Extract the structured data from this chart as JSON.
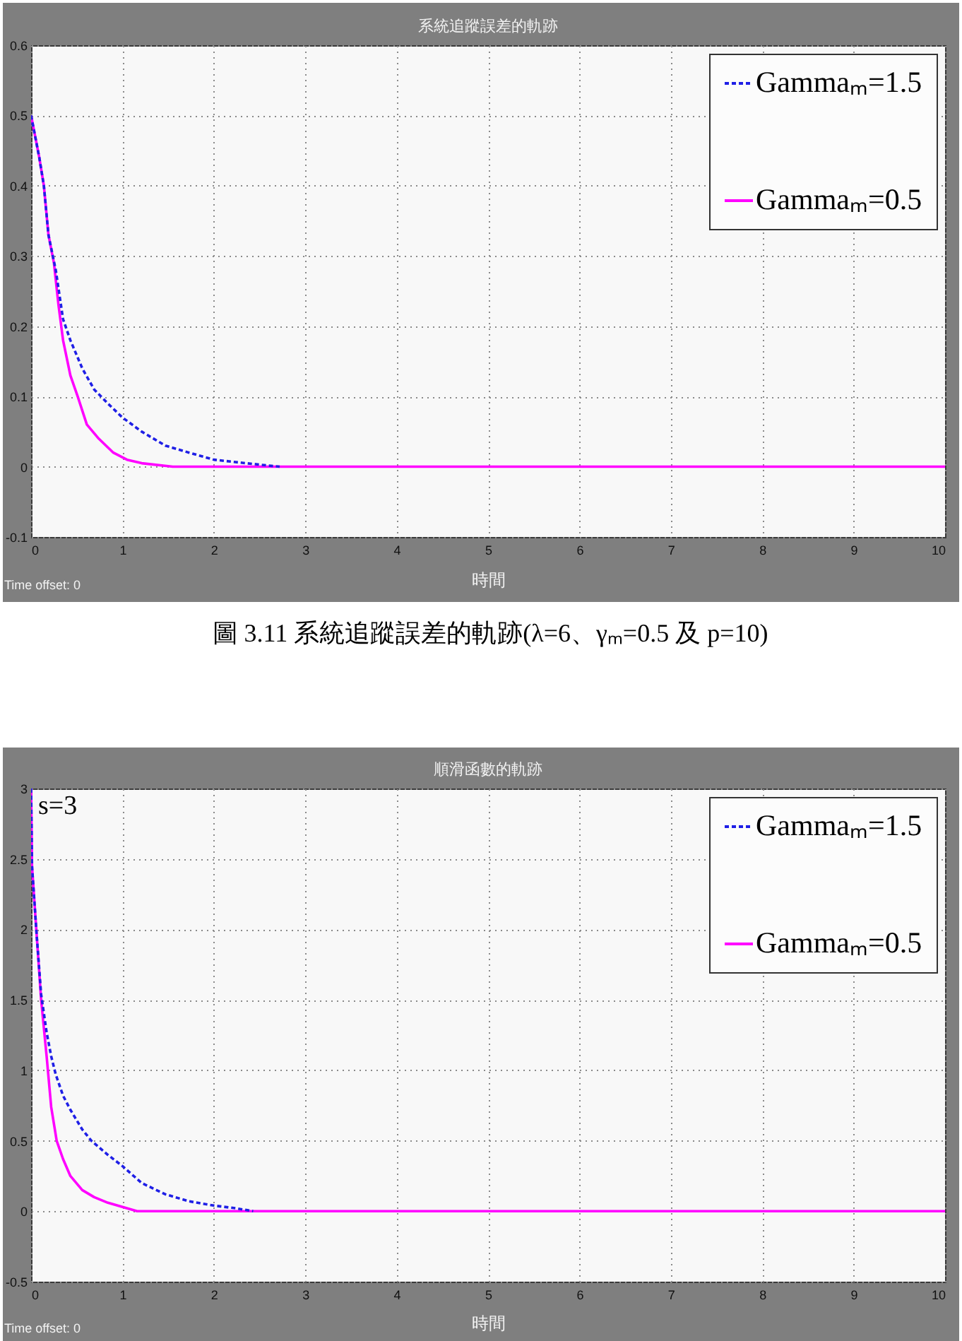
{
  "chart_data": [
    {
      "type": "line",
      "title": "系統追蹤誤差的軌跡",
      "xlabel": "時間",
      "series": [
        {
          "name": "Gammaₘ=1.5",
          "color": "#1f1fe6",
          "line_style": "dashed",
          "x": [
            0,
            0.09,
            0.14,
            0.19,
            0.27,
            0.35,
            0.43,
            0.56,
            0.69,
            0.84,
            1,
            1.21,
            1.47,
            1.73,
            2,
            2.35,
            2.72
          ],
          "values": [
            0.5,
            0.44,
            0.4,
            0.33,
            0.28,
            0.21,
            0.18,
            0.14,
            0.11,
            0.09,
            0.07,
            0.05,
            0.03,
            0.02,
            0.01,
            0.005,
            0
          ]
        },
        {
          "name": "Gammaₘ=0.5",
          "color": "#ff00ff",
          "line_style": "solid",
          "x": [
            0,
            0.09,
            0.14,
            0.19,
            0.25,
            0.3,
            0.35,
            0.43,
            0.51,
            0.61,
            0.74,
            0.9,
            1.05,
            1.21,
            1.55,
            10
          ],
          "values": [
            0.5,
            0.44,
            0.4,
            0.33,
            0.29,
            0.23,
            0.18,
            0.13,
            0.1,
            0.06,
            0.04,
            0.02,
            0.01,
            0.005,
            0,
            0
          ]
        }
      ],
      "xlim": [
        0,
        10
      ],
      "xticks": [
        0,
        1,
        2,
        3,
        4,
        5,
        6,
        7,
        8,
        9,
        10
      ],
      "ylim": [
        -0.1,
        0.6
      ],
      "yticks": [
        -0.1,
        0,
        0.1,
        0.2,
        0.3,
        0.4,
        0.5,
        0.6
      ],
      "grid": true,
      "legend": "top right",
      "annotations": [
        "Time offset: 0",
        "圖 3.11 系統追蹤誤差的軌跡(λ=6、γₘ=0.5 及 p=10)"
      ]
    },
    {
      "type": "line",
      "title": "順滑函數的軌跡",
      "xlabel": "時間",
      "series": [
        {
          "name": "Gammaₘ=1.5",
          "color": "#1f1fe6",
          "line_style": "dashed",
          "x": [
            0,
            0.01,
            0.06,
            0.11,
            0.17,
            0.22,
            0.27,
            0.35,
            0.43,
            0.56,
            0.66,
            0.84,
            1,
            1.21,
            1.47,
            1.73,
            2,
            2.25,
            2.43
          ],
          "values": [
            3,
            2.45,
            1.97,
            1.54,
            1.27,
            1.1,
            0.97,
            0.82,
            0.72,
            0.58,
            0.5,
            0.4,
            0.32,
            0.2,
            0.12,
            0.07,
            0.04,
            0.02,
            0
          ]
        },
        {
          "name": "Gammaₘ=0.5",
          "color": "#ff00ff",
          "line_style": "solid",
          "x": [
            0,
            0.01,
            0.06,
            0.11,
            0.17,
            0.22,
            0.28,
            0.35,
            0.43,
            0.56,
            0.69,
            0.84,
            1,
            1.16,
            10
          ],
          "values": [
            3,
            2.45,
            1.97,
            1.5,
            1.1,
            0.74,
            0.5,
            0.37,
            0.25,
            0.15,
            0.1,
            0.06,
            0.03,
            0,
            0
          ]
        }
      ],
      "xlim": [
        0,
        10
      ],
      "xticks": [
        0,
        1,
        2,
        3,
        4,
        5,
        6,
        7,
        8,
        9,
        10
      ],
      "ylim": [
        -0.5,
        3
      ],
      "yticks": [
        -0.5,
        0,
        0.5,
        1,
        1.5,
        2,
        2.5,
        3
      ],
      "grid": true,
      "legend": "top right",
      "annotations": [
        {
          "text": "s=3",
          "x": 0,
          "y": 3
        },
        "Time offset: 0"
      ]
    }
  ]
}
